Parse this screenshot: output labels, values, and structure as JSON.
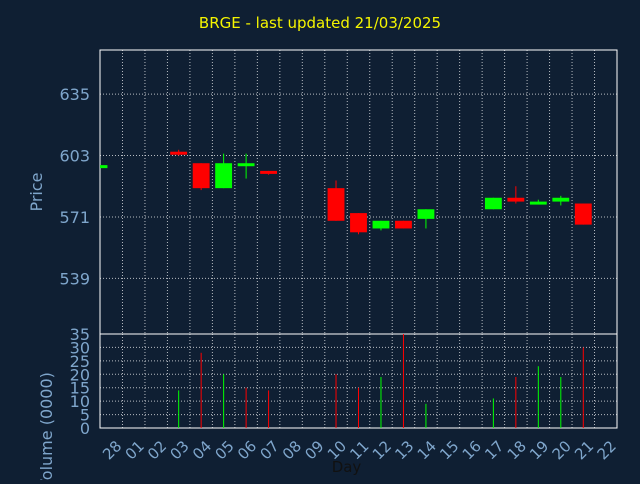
{
  "chart_data": [
    {
      "type": "candlestick",
      "title": "BRGE - last updated 21/03/2025",
      "ylabel": "Price",
      "xlabel": "Day",
      "grid": true,
      "ylim": [
        510,
        658
      ],
      "yticks": [
        539,
        571,
        603,
        635
      ],
      "x": [
        "28",
        "01",
        "02",
        "03",
        "04",
        "05",
        "06",
        "07",
        "08",
        "09",
        "10",
        "11",
        "12",
        "13",
        "14",
        "15",
        "16",
        "17",
        "18",
        "19",
        "20",
        "21",
        "22"
      ],
      "series": [
        {
          "candles": [
            {
              "x": "28",
              "open": 598,
              "high": 598,
              "low": 598,
              "close": 598
            },
            {
              "x": "03",
              "open": 605,
              "high": 606,
              "low": 603,
              "close": 604
            },
            {
              "x": "04",
              "open": 599,
              "high": 599,
              "low": 585,
              "close": 586
            },
            {
              "x": "05",
              "open": 586,
              "high": 604,
              "low": 586,
              "close": 599
            },
            {
              "x": "06",
              "open": 598,
              "high": 604,
              "low": 591,
              "close": 599
            },
            {
              "x": "07",
              "open": 595,
              "high": 595,
              "low": 593,
              "close": 594
            },
            {
              "x": "10",
              "open": 586,
              "high": 590,
              "low": 569,
              "close": 569
            },
            {
              "x": "11",
              "open": 573,
              "high": 573,
              "low": 562,
              "close": 563
            },
            {
              "x": "12",
              "open": 565,
              "high": 569,
              "low": 564,
              "close": 569
            },
            {
              "x": "13",
              "open": 569,
              "high": 569,
              "low": 565,
              "close": 565
            },
            {
              "x": "14",
              "open": 570,
              "high": 575,
              "low": 565,
              "close": 575
            },
            {
              "x": "17",
              "open": 575,
              "high": 581,
              "low": 575,
              "close": 581
            },
            {
              "x": "18",
              "open": 581,
              "high": 587,
              "low": 578,
              "close": 579
            },
            {
              "x": "19",
              "open": 578,
              "high": 580,
              "low": 578,
              "close": 579
            },
            {
              "x": "20",
              "open": 579,
              "high": 582,
              "low": 577,
              "close": 581
            },
            {
              "x": "21",
              "open": 578,
              "high": 578,
              "low": 567,
              "close": 567
            }
          ]
        }
      ],
      "colors": {
        "up": "#00ff00",
        "down": "#ff0000",
        "axis_text": "#7fa6cc",
        "grid": "#ffffff"
      }
    },
    {
      "type": "bar",
      "ylabel": "Volume (0000)",
      "xlabel": "Day",
      "ylim": [
        0,
        35
      ],
      "yticks": [
        0,
        5,
        10,
        15,
        20,
        25,
        30,
        35
      ],
      "grid": true,
      "series": [
        {
          "bars": [
            {
              "x": "03",
              "value": 14,
              "direction": "up"
            },
            {
              "x": "04",
              "value": 28,
              "direction": "down"
            },
            {
              "x": "05",
              "value": 20,
              "direction": "up"
            },
            {
              "x": "06",
              "value": 15,
              "direction": "down"
            },
            {
              "x": "07",
              "value": 14,
              "direction": "down"
            },
            {
              "x": "10",
              "value": 20,
              "direction": "down"
            },
            {
              "x": "11",
              "value": 15,
              "direction": "down"
            },
            {
              "x": "12",
              "value": 19,
              "direction": "up"
            },
            {
              "x": "13",
              "value": 35,
              "direction": "down"
            },
            {
              "x": "14",
              "value": 9,
              "direction": "up"
            },
            {
              "x": "17",
              "value": 11,
              "direction": "up"
            },
            {
              "x": "18",
              "value": 19,
              "direction": "down"
            },
            {
              "x": "19",
              "value": 23,
              "direction": "up"
            },
            {
              "x": "20",
              "value": 19,
              "direction": "up"
            },
            {
              "x": "21",
              "value": 30,
              "direction": "down"
            }
          ]
        }
      ]
    }
  ]
}
